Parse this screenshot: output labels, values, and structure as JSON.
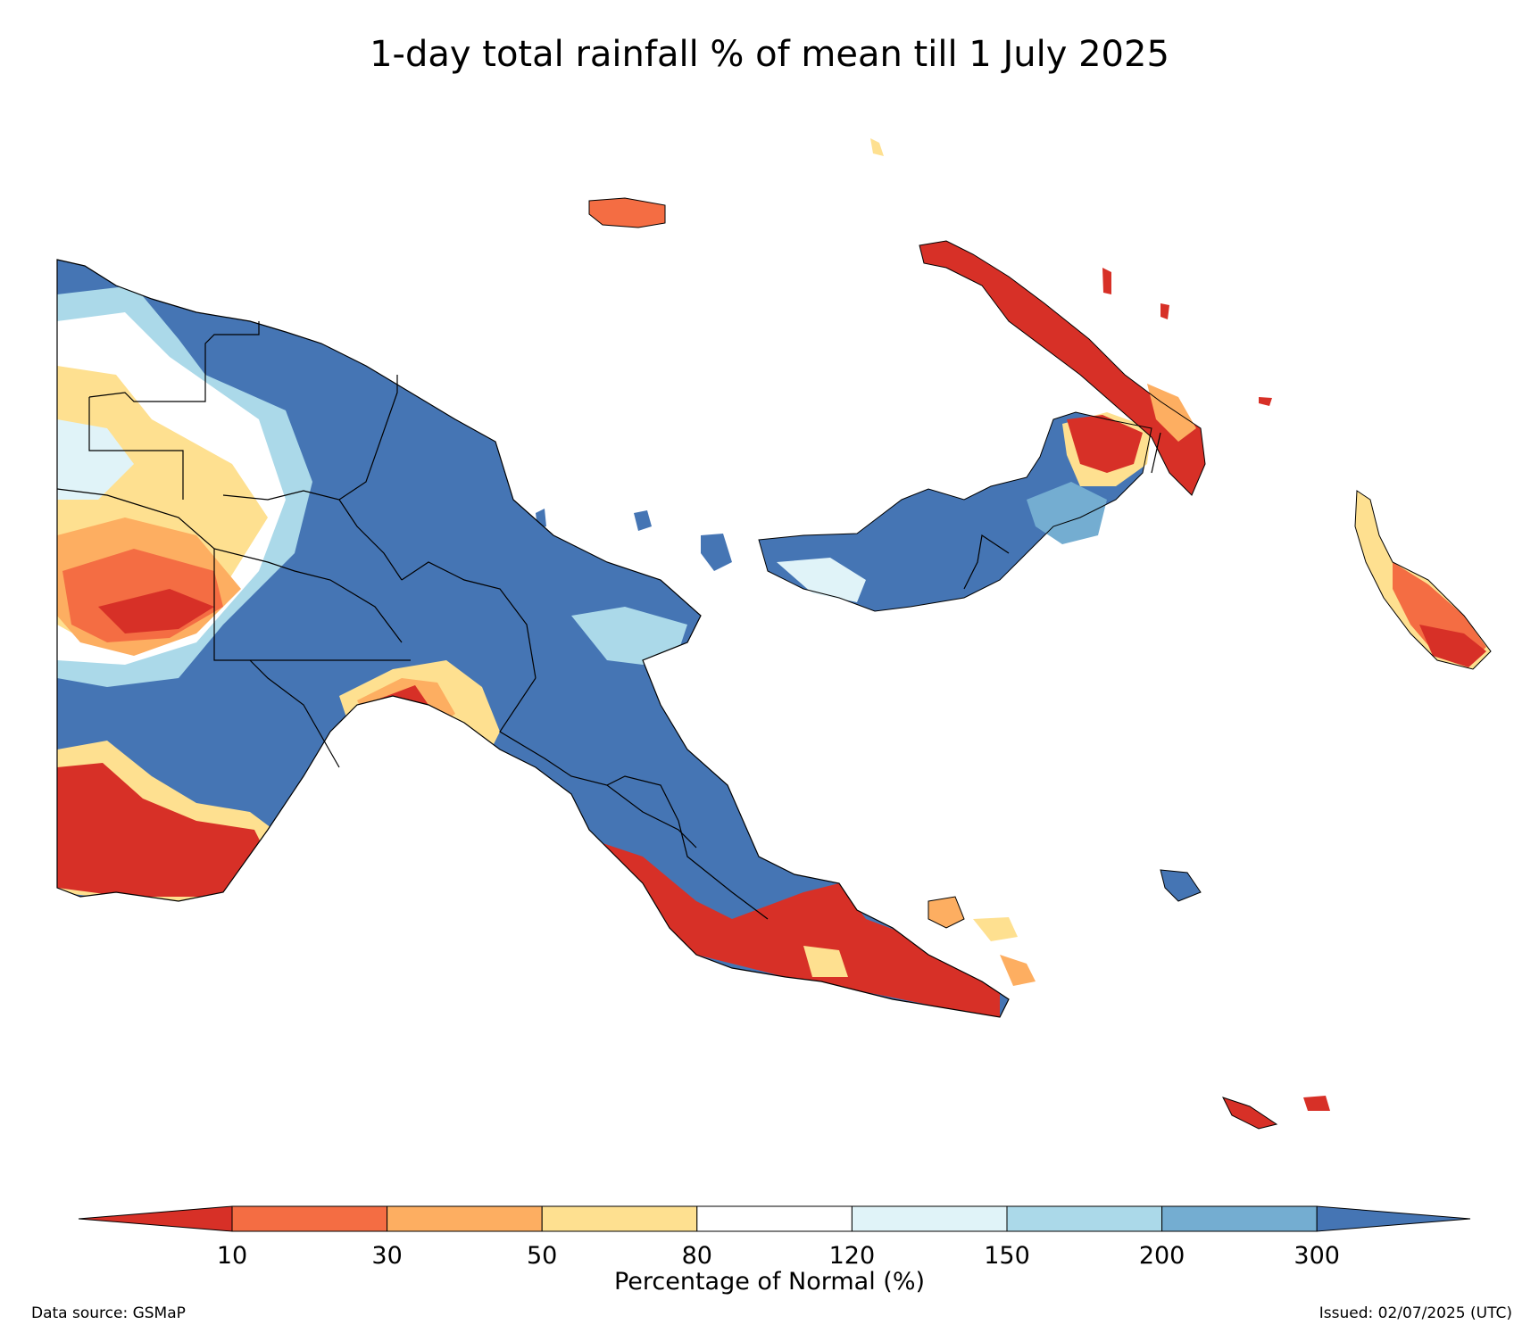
{
  "title": "1-day total rainfall % of mean till 1 July 2025",
  "colorbar": {
    "label": "Percentage of Normal (%)",
    "ticks": [
      "10",
      "30",
      "50",
      "80",
      "120",
      "150",
      "200",
      "300"
    ],
    "under_color": "#d73027",
    "over_color": "#4575b4",
    "bins": [
      {
        "range": "10-30",
        "color": "#f46d43"
      },
      {
        "range": "30-50",
        "color": "#fdae61"
      },
      {
        "range": "50-80",
        "color": "#fee090"
      },
      {
        "range": "80-120",
        "color": "#ffffff"
      },
      {
        "range": "120-150",
        "color": "#e0f3f8"
      },
      {
        "range": "150-200",
        "color": "#abd9e9"
      },
      {
        "range": "200-300",
        "color": "#74add1"
      }
    ]
  },
  "footer": {
    "source": "Data source: GSMaP",
    "issued": "Issued: 02/07/2025 (UTC)"
  }
}
